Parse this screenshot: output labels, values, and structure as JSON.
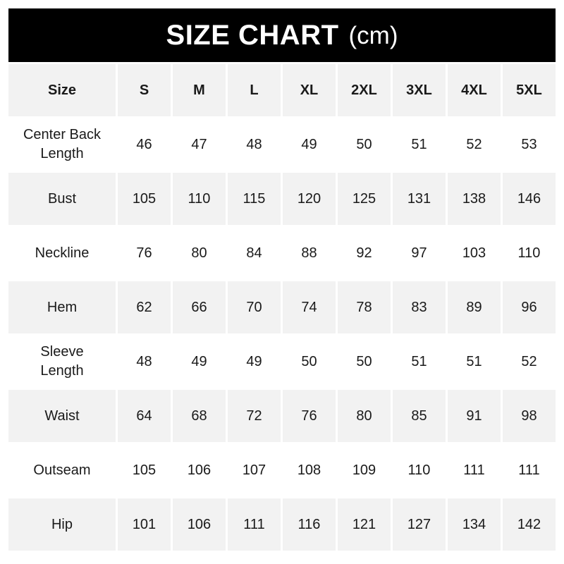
{
  "banner": {
    "title": "SIZE CHART",
    "unit_label": "(cm)"
  },
  "colors": {
    "banner_bg": "#000000",
    "banner_text": "#ffffff",
    "stripe": "#f2f2f2",
    "row_base": "#ffffff",
    "text": "#1a1a1a"
  },
  "chart_data": {
    "type": "table",
    "title": "SIZE CHART (cm)",
    "unit": "cm",
    "columns": [
      "Size",
      "S",
      "M",
      "L",
      "XL",
      "2XL",
      "3XL",
      "4XL",
      "5XL"
    ],
    "rows": [
      {
        "label": "Center Back Length",
        "values": [
          46,
          47,
          48,
          49,
          50,
          51,
          52,
          53
        ]
      },
      {
        "label": "Bust",
        "values": [
          105,
          110,
          115,
          120,
          125,
          131,
          138,
          146
        ]
      },
      {
        "label": "Neckline",
        "values": [
          76,
          80,
          84,
          88,
          92,
          97,
          103,
          110
        ]
      },
      {
        "label": "Hem",
        "values": [
          62,
          66,
          70,
          74,
          78,
          83,
          89,
          96
        ]
      },
      {
        "label": "Sleeve Length",
        "values": [
          48,
          49,
          49,
          50,
          50,
          51,
          51,
          52
        ]
      },
      {
        "label": "Waist",
        "values": [
          64,
          68,
          72,
          76,
          80,
          85,
          91,
          98
        ]
      },
      {
        "label": "Outseam",
        "values": [
          105,
          106,
          107,
          108,
          109,
          110,
          111,
          111
        ]
      },
      {
        "label": "Hip",
        "values": [
          101,
          106,
          111,
          116,
          121,
          127,
          134,
          142
        ]
      }
    ],
    "layout": {
      "striped": true,
      "stripe_pattern": "header and even data rows gray, odd data rows white",
      "first_column_role": "measurement label"
    }
  }
}
